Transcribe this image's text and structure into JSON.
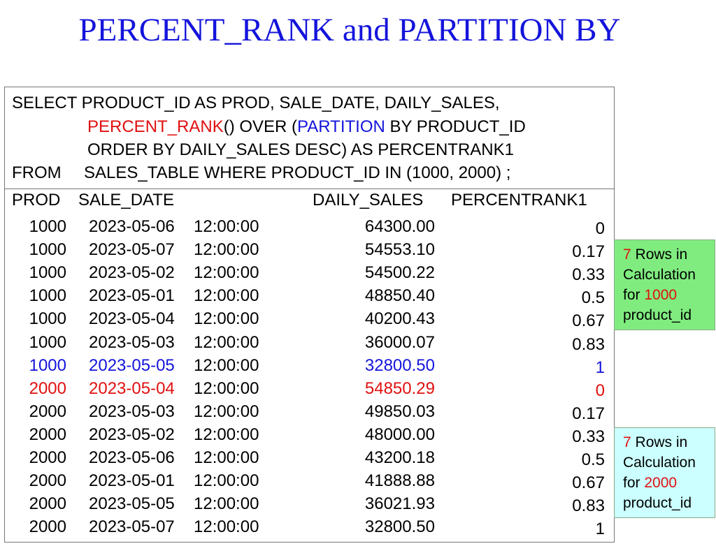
{
  "title": "PERCENT_RANK and PARTITION BY",
  "query": {
    "line1": "SELECT PRODUCT_ID AS PROD, SALE_DATE, DAILY_SALES,",
    "line2": [
      "PERCENT_RANK",
      "() OVER (",
      "PARTITION",
      " BY PRODUCT_ID"
    ],
    "line3": "ORDER BY DAILY_SALES DESC) AS PERCENTRANK1",
    "line4": [
      "FROM",
      "SALES_TABLE WHERE PRODUCT_ID IN (1000, 2000) ;"
    ]
  },
  "table": {
    "header": [
      "PROD",
      "SALE_DATE",
      "DAILY_SALES",
      "PERCENTRANK1"
    ],
    "rows": [
      [
        "1000",
        "2023-05-06",
        "12:00:00",
        "64300.00",
        "0"
      ],
      [
        "1000",
        "2023-05-07",
        "12:00:00",
        "54553.10",
        "0.17"
      ],
      [
        "1000",
        "2023-05-02",
        "12:00:00",
        "54500.22",
        "0.33"
      ],
      [
        "1000",
        "2023-05-01",
        "12:00:00",
        "48850.40",
        "0.5"
      ],
      [
        "1000",
        "2023-05-04",
        "12:00:00",
        "40200.43",
        "0.67"
      ],
      [
        "1000",
        "2023-05-03",
        "12:00:00",
        "36000.07",
        "0.83"
      ],
      [
        "1000",
        "2023-05-05",
        "12:00:00",
        "32800.50",
        "1"
      ],
      [
        "2000",
        "2023-05-04",
        "12:00:00",
        "54850.29",
        "0"
      ],
      [
        "2000",
        "2023-05-03",
        "12:00:00",
        "49850.03",
        "0.17"
      ],
      [
        "2000",
        "2023-05-02",
        "12:00:00",
        "48000.00",
        "0.33"
      ],
      [
        "2000",
        "2023-05-06",
        "12:00:00",
        "43200.18",
        "0.5"
      ],
      [
        "2000",
        "2023-05-01",
        "12:00:00",
        "41888.88",
        "0.67"
      ],
      [
        "2000",
        "2023-05-05",
        "12:00:00",
        "36021.93",
        "0.83"
      ],
      [
        "2000",
        "2023-05-07",
        "12:00:00",
        "32800.50",
        "1"
      ]
    ]
  },
  "callouts": [
    {
      "count": "7",
      "rows_in": "Rows in",
      "calculation": "Calculation",
      "for": "for",
      "product": "1000",
      "tail": "product_id"
    },
    {
      "count": "7",
      "rows_in": "Rows in",
      "calculation": "Calculation",
      "for": "for",
      "product": "2000",
      "tail": "product_id"
    }
  ]
}
